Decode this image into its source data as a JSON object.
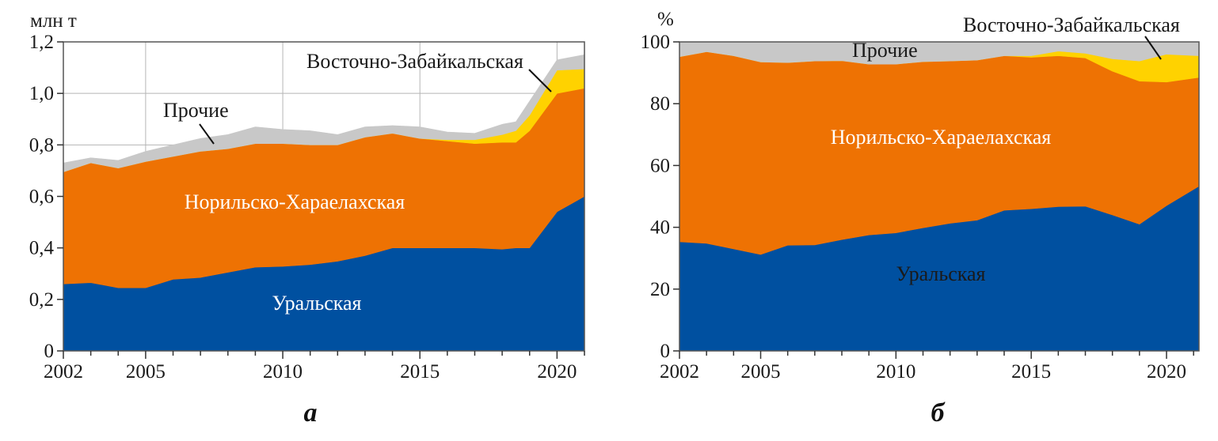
{
  "chart_data": [
    {
      "type": "area",
      "panel_label": "а",
      "ylabel": "млн т",
      "xlabel": "",
      "xlim": [
        2002,
        2021
      ],
      "ylim": [
        0,
        1.2
      ],
      "x_ticks": [
        "2002",
        "2005",
        "2010",
        "2015",
        "2020"
      ],
      "y_ticks": [
        "0",
        "0,2",
        "0,4",
        "0,6",
        "0,8",
        "1,0",
        "1,2"
      ],
      "grid": true,
      "stacked": true,
      "series": [
        {
          "name": "Уральская",
          "color": "#0050A0",
          "x": [
            2002,
            2003,
            2004,
            2005,
            2006,
            2007,
            2008,
            2009,
            2010,
            2011,
            2012,
            2013,
            2014,
            2015,
            2016,
            2017,
            2018,
            2018.5,
            2019,
            2020,
            2021
          ],
          "values": [
            0.26,
            0.265,
            0.245,
            0.245,
            0.278,
            0.285,
            0.305,
            0.325,
            0.328,
            0.335,
            0.348,
            0.37,
            0.4,
            0.4,
            0.4,
            0.4,
            0.395,
            0.4,
            0.4,
            0.54,
            0.6
          ]
        },
        {
          "name": "Норильско-Хараелахская",
          "color": "#EE7203",
          "x": [
            2002,
            2003,
            2004,
            2005,
            2006,
            2007,
            2008,
            2009,
            2010,
            2011,
            2012,
            2013,
            2014,
            2015,
            2016,
            2017,
            2018,
            2018.5,
            2019,
            2020,
            2021
          ],
          "values": [
            0.435,
            0.465,
            0.465,
            0.49,
            0.477,
            0.49,
            0.48,
            0.48,
            0.477,
            0.465,
            0.452,
            0.46,
            0.445,
            0.425,
            0.415,
            0.405,
            0.415,
            0.41,
            0.455,
            0.46,
            0.42
          ]
        },
        {
          "name": "Восточно-Забайкальская",
          "color": "#FFD200",
          "x": [
            2002,
            2003,
            2004,
            2005,
            2006,
            2007,
            2008,
            2009,
            2010,
            2011,
            2012,
            2013,
            2014,
            2015,
            2016,
            2017,
            2018,
            2018.5,
            2019,
            2020,
            2021
          ],
          "values": [
            0,
            0,
            0,
            0,
            0,
            0,
            0,
            0,
            0,
            0,
            0,
            0,
            0,
            0,
            0.005,
            0.015,
            0.03,
            0.045,
            0.06,
            0.09,
            0.075
          ]
        },
        {
          "name": "Прочие",
          "color": "#C8C8C8",
          "x": [
            2002,
            2003,
            2004,
            2005,
            2006,
            2007,
            2008,
            2009,
            2010,
            2011,
            2012,
            2013,
            2014,
            2015,
            2016,
            2017,
            2018,
            2018.5,
            2019,
            2020,
            2021
          ],
          "values": [
            0.035,
            0.02,
            0.03,
            0.04,
            0.045,
            0.05,
            0.055,
            0.065,
            0.055,
            0.055,
            0.04,
            0.04,
            0.03,
            0.045,
            0.03,
            0.025,
            0.04,
            0.035,
            0.055,
            0.04,
            0.055
          ]
        }
      ],
      "annotations": [
        {
          "text": "Уральская",
          "series": "Уральская",
          "text_color": "#FFFFFF"
        },
        {
          "text": "Норильско-Хараелахская",
          "series": "Норильско-Хараелахская",
          "text_color": "#FFFFFF"
        },
        {
          "text": "Прочие",
          "series": "Прочие",
          "text_color": "#1A1A1A",
          "leader": true
        },
        {
          "text": "Восточно-Забайкальская",
          "series": "Восточно-Забайкальская",
          "text_color": "#1A1A1A",
          "leader": true
        }
      ]
    },
    {
      "type": "area",
      "panel_label": "б",
      "ylabel": "%",
      "xlabel": "",
      "xlim": [
        2002,
        2021.2
      ],
      "ylim": [
        0,
        100
      ],
      "x_ticks": [
        "2002",
        "2005",
        "2010",
        "2015",
        "2020"
      ],
      "y_ticks": [
        "0",
        "20",
        "40",
        "60",
        "80",
        "100"
      ],
      "grid": false,
      "stacked": true,
      "series": [
        {
          "name": "Уральская",
          "color": "#0050A0",
          "x": [
            2002,
            2003,
            2004,
            2005,
            2006,
            2007,
            2008,
            2009,
            2010,
            2011,
            2012,
            2013,
            2014,
            2015,
            2016,
            2017,
            2018,
            2019,
            2020,
            2021.2
          ],
          "values": [
            35.3,
            34.8,
            33.0,
            31.2,
            34.2,
            34.3,
            36.0,
            37.5,
            38.2,
            39.8,
            41.3,
            42.3,
            45.5,
            46.0,
            46.7,
            46.8,
            44.0,
            41.0,
            47.0,
            53.3
          ]
        },
        {
          "name": "Норильско-Хараелахская",
          "color": "#EE7203",
          "x": [
            2002,
            2003,
            2004,
            2005,
            2006,
            2007,
            2008,
            2009,
            2010,
            2011,
            2012,
            2013,
            2014,
            2015,
            2016,
            2017,
            2018,
            2019,
            2020,
            2021.2
          ],
          "values": [
            59.9,
            62.0,
            62.5,
            62.3,
            59.1,
            59.5,
            57.9,
            55.3,
            54.6,
            53.8,
            52.5,
            51.8,
            50.0,
            49.0,
            48.8,
            48.0,
            46.5,
            46.3,
            40.0,
            35.2
          ]
        },
        {
          "name": "Восточно-Забайкальская",
          "color": "#FFD200",
          "x": [
            2002,
            2003,
            2004,
            2005,
            2006,
            2007,
            2008,
            2009,
            2010,
            2011,
            2012,
            2013,
            2014,
            2015,
            2016,
            2017,
            2018,
            2019,
            2020,
            2021.2
          ],
          "values": [
            0,
            0,
            0,
            0,
            0,
            0,
            0,
            0,
            0,
            0,
            0,
            0,
            0,
            0.5,
            1.5,
            1.5,
            4.0,
            6.5,
            9.0,
            7.0
          ]
        },
        {
          "name": "Прочие",
          "color": "#C8C8C8",
          "x": [
            2002,
            2003,
            2004,
            2005,
            2006,
            2007,
            2008,
            2009,
            2010,
            2011,
            2012,
            2013,
            2014,
            2015,
            2016,
            2017,
            2018,
            2019,
            2020,
            2021.2
          ],
          "values": [
            4.8,
            3.2,
            4.5,
            6.5,
            6.7,
            6.2,
            6.1,
            7.2,
            7.2,
            6.4,
            6.2,
            5.9,
            4.5,
            4.5,
            3.0,
            3.7,
            5.5,
            6.2,
            4.0,
            4.5
          ]
        }
      ],
      "annotations": [
        {
          "text": "Уральская",
          "series": "Уральская",
          "text_color": "#1A1A1A"
        },
        {
          "text": "Норильско-Хараелахская",
          "series": "Норильско-Хараелахская",
          "text_color": "#FFFFFF"
        },
        {
          "text": "Прочие",
          "series": "Прочие",
          "text_color": "#1A1A1A"
        },
        {
          "text": "Восточно-Забайкальская",
          "series": "Восточно-Забайкальская",
          "text_color": "#1A1A1A",
          "leader": true
        }
      ]
    }
  ]
}
